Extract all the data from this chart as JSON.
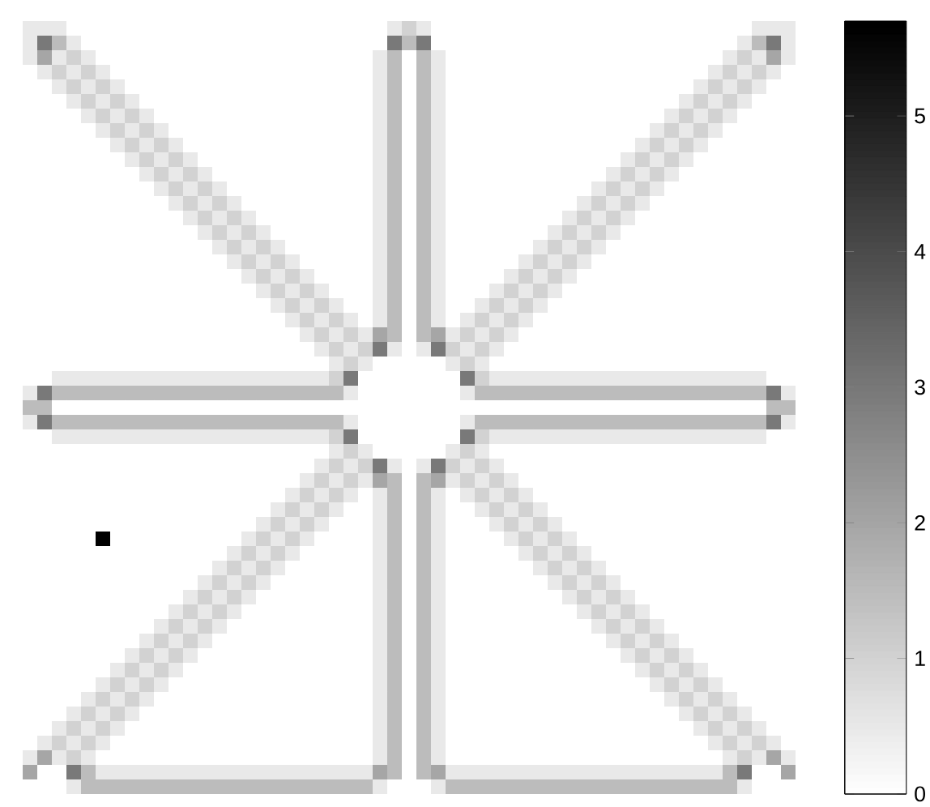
{
  "chart_data": {
    "type": "heatmap",
    "categories": [
      null,
      null,
      null,
      null,
      null,
      null,
      null,
      null,
      null,
      null,
      null,
      null,
      null,
      null,
      null,
      null,
      null,
      null,
      null,
      null,
      null,
      null,
      null,
      null,
      null,
      null,
      null,
      null,
      null,
      null,
      null,
      null,
      null,
      null,
      null,
      null,
      null,
      null,
      null,
      null,
      null,
      null,
      null,
      null,
      null,
      null,
      null,
      null,
      null,
      null,
      null,
      null,
      null
    ],
    "y_categories": [
      null,
      null,
      null,
      null,
      null,
      null,
      null,
      null,
      null,
      null,
      null,
      null,
      null,
      null,
      null,
      null,
      null,
      null,
      null,
      null,
      null,
      null,
      null,
      null,
      null,
      null,
      null,
      null,
      null,
      null,
      null,
      null,
      null,
      null,
      null,
      null,
      null,
      null,
      null,
      null,
      null,
      null,
      null,
      null,
      null,
      null,
      null,
      null,
      null,
      null,
      null,
      null,
      null
    ],
    "tick_labels": false,
    "clim": [
      0,
      5.7
    ],
    "cticks": [
      0,
      1,
      2,
      3,
      4,
      5
    ],
    "cells": [
      [
        0.5,
        0.5,
        0.5,
        0,
        0,
        0,
        0,
        0,
        0,
        0,
        0,
        0,
        0,
        0,
        0,
        0,
        0,
        0,
        0,
        0,
        0,
        0,
        0,
        0,
        0,
        0.5,
        1,
        0.5,
        0,
        0,
        0,
        0,
        0,
        0,
        0,
        0,
        0,
        0,
        0,
        0,
        0,
        0,
        0,
        0,
        0,
        0,
        0,
        0,
        0,
        0,
        0.5,
        0.5,
        0.5
      ],
      [
        0.5,
        3,
        1.5,
        0.5,
        0,
        0,
        0,
        0,
        0,
        0,
        0,
        0,
        0,
        0,
        0,
        0,
        0,
        0,
        0,
        0,
        0,
        0,
        0,
        0,
        0,
        3,
        1.5,
        3,
        0,
        0,
        0,
        0,
        0,
        0,
        0,
        0,
        0,
        0,
        0,
        0,
        0,
        0,
        0,
        0,
        0,
        0,
        0,
        0,
        0,
        0.5,
        1.5,
        3,
        0.5
      ],
      [
        0.5,
        2,
        0.5,
        1,
        0.5,
        0,
        0,
        0,
        0,
        0,
        0,
        0,
        0,
        0,
        0,
        0,
        0,
        0,
        0,
        0,
        0,
        0,
        0,
        0,
        0.5,
        1.5,
        0,
        1.5,
        0.5,
        0,
        0,
        0,
        0,
        0,
        0,
        0,
        0,
        0,
        0,
        0,
        0,
        0,
        0,
        0,
        0,
        0,
        0,
        0,
        0.5,
        1,
        0.5,
        2,
        0.5
      ],
      [
        0,
        0.5,
        1,
        0.5,
        1,
        0.5,
        0,
        0,
        0,
        0,
        0,
        0,
        0,
        0,
        0,
        0,
        0,
        0,
        0,
        0,
        0,
        0,
        0,
        0,
        0.5,
        1.5,
        0,
        1.5,
        0.5,
        0,
        0,
        0,
        0,
        0,
        0,
        0,
        0,
        0,
        0,
        0,
        0,
        0,
        0,
        0,
        0,
        0,
        0,
        0.5,
        1,
        0.5,
        1,
        0.5,
        0
      ],
      [
        0,
        0,
        0.5,
        1,
        0.5,
        1,
        0.5,
        0,
        0,
        0,
        0,
        0,
        0,
        0,
        0,
        0,
        0,
        0,
        0,
        0,
        0,
        0,
        0,
        0,
        0.5,
        1.5,
        0,
        1.5,
        0.5,
        0,
        0,
        0,
        0,
        0,
        0,
        0,
        0,
        0,
        0,
        0,
        0,
        0,
        0,
        0,
        0,
        0,
        0.5,
        1,
        0.5,
        1,
        0.5,
        0,
        0
      ],
      [
        0,
        0,
        0,
        0.5,
        1,
        0.5,
        1,
        0.5,
        0,
        0,
        0,
        0,
        0,
        0,
        0,
        0,
        0,
        0,
        0,
        0,
        0,
        0,
        0,
        0,
        0.5,
        1.5,
        0,
        1.5,
        0.5,
        0,
        0,
        0,
        0,
        0,
        0,
        0,
        0,
        0,
        0,
        0,
        0,
        0,
        0,
        0,
        0,
        0.5,
        1,
        0.5,
        1,
        0.5,
        0,
        0,
        0
      ],
      [
        0,
        0,
        0,
        0,
        0.5,
        1,
        0.5,
        1,
        0.5,
        0,
        0,
        0,
        0,
        0,
        0,
        0,
        0,
        0,
        0,
        0,
        0,
        0,
        0,
        0,
        0.5,
        1.5,
        0,
        1.5,
        0.5,
        0,
        0,
        0,
        0,
        0,
        0,
        0,
        0,
        0,
        0,
        0,
        0,
        0,
        0,
        0,
        0.5,
        1,
        0.5,
        1,
        0.5,
        0,
        0,
        0,
        0
      ],
      [
        0,
        0,
        0,
        0,
        0,
        0.5,
        1,
        0.5,
        1,
        0.5,
        0,
        0,
        0,
        0,
        0,
        0,
        0,
        0,
        0,
        0,
        0,
        0,
        0,
        0,
        0.5,
        1.5,
        0,
        1.5,
        0.5,
        0,
        0,
        0,
        0,
        0,
        0,
        0,
        0,
        0,
        0,
        0,
        0,
        0,
        0,
        0.5,
        1,
        0.5,
        1,
        0.5,
        0,
        0,
        0,
        0,
        0
      ],
      [
        0,
        0,
        0,
        0,
        0,
        0,
        0.5,
        1,
        0.5,
        1,
        0.5,
        0,
        0,
        0,
        0,
        0,
        0,
        0,
        0,
        0,
        0,
        0,
        0,
        0,
        0.5,
        1.5,
        0,
        1.5,
        0.5,
        0,
        0,
        0,
        0,
        0,
        0,
        0,
        0,
        0,
        0,
        0,
        0,
        0,
        0.5,
        1,
        0.5,
        1,
        0.5,
        0,
        0,
        0,
        0,
        0,
        0
      ],
      [
        0,
        0,
        0,
        0,
        0,
        0,
        0,
        0.5,
        1,
        0.5,
        1,
        0.5,
        0,
        0,
        0,
        0,
        0,
        0,
        0,
        0,
        0,
        0,
        0,
        0,
        0.5,
        1.5,
        0,
        1.5,
        0.5,
        0,
        0,
        0,
        0,
        0,
        0,
        0,
        0,
        0,
        0,
        0,
        0,
        0.5,
        1,
        0.5,
        1,
        0.5,
        0,
        0,
        0,
        0,
        0,
        0,
        0
      ],
      [
        0,
        0,
        0,
        0,
        0,
        0,
        0,
        0,
        0.5,
        1,
        0.5,
        1,
        0.5,
        0,
        0,
        0,
        0,
        0,
        0,
        0,
        0,
        0,
        0,
        0,
        0.5,
        1.5,
        0,
        1.5,
        0.5,
        0,
        0,
        0,
        0,
        0,
        0,
        0,
        0,
        0,
        0,
        0,
        0.5,
        1,
        0.5,
        1,
        0.5,
        0,
        0,
        0,
        0,
        0,
        0,
        0,
        0
      ],
      [
        0,
        0,
        0,
        0,
        0,
        0,
        0,
        0,
        0,
        0.5,
        1,
        0.5,
        1,
        0.5,
        0,
        0,
        0,
        0,
        0,
        0,
        0,
        0,
        0,
        0,
        0.5,
        1.5,
        0,
        1.5,
        0.5,
        0,
        0,
        0,
        0,
        0,
        0,
        0,
        0,
        0,
        0,
        0.5,
        1,
        0.5,
        1,
        0.5,
        0,
        0,
        0,
        0,
        0,
        0,
        0,
        0,
        0
      ],
      [
        0,
        0,
        0,
        0,
        0,
        0,
        0,
        0,
        0,
        0,
        0.5,
        1,
        0.5,
        1,
        0.5,
        0,
        0,
        0,
        0,
        0,
        0,
        0,
        0,
        0,
        0.5,
        1.5,
        0,
        1.5,
        0.5,
        0,
        0,
        0,
        0,
        0,
        0,
        0,
        0,
        0,
        0.5,
        1,
        0.5,
        1,
        0.5,
        0,
        0,
        0,
        0,
        0,
        0,
        0,
        0,
        0,
        0
      ],
      [
        0,
        0,
        0,
        0,
        0,
        0,
        0,
        0,
        0,
        0,
        0,
        0.5,
        1,
        0.5,
        1,
        0.5,
        0,
        0,
        0,
        0,
        0,
        0,
        0,
        0,
        0.5,
        1.5,
        0,
        1.5,
        0.5,
        0,
        0,
        0,
        0,
        0,
        0,
        0,
        0,
        0.5,
        1,
        0.5,
        1,
        0.5,
        0,
        0,
        0,
        0,
        0,
        0,
        0,
        0,
        0,
        0,
        0
      ],
      [
        0,
        0,
        0,
        0,
        0,
        0,
        0,
        0,
        0,
        0,
        0,
        0,
        0.5,
        1,
        0.5,
        1,
        0.5,
        0,
        0,
        0,
        0,
        0,
        0,
        0,
        0.5,
        1.5,
        0,
        1.5,
        0.5,
        0,
        0,
        0,
        0,
        0,
        0,
        0,
        0.5,
        1,
        0.5,
        1,
        0.5,
        0,
        0,
        0,
        0,
        0,
        0,
        0,
        0,
        0,
        0,
        0,
        0
      ],
      [
        0,
        0,
        0,
        0,
        0,
        0,
        0,
        0,
        0,
        0,
        0,
        0,
        0,
        0.5,
        1,
        0.5,
        1,
        0.5,
        0,
        0,
        0,
        0,
        0,
        0,
        0.5,
        1.5,
        0,
        1.5,
        0.5,
        0,
        0,
        0,
        0,
        0,
        0,
        0.5,
        1,
        0.5,
        1,
        0.5,
        0,
        0,
        0,
        0,
        0,
        0,
        0,
        0,
        0,
        0,
        0,
        0,
        0
      ],
      [
        0,
        0,
        0,
        0,
        0,
        0,
        0,
        0,
        0,
        0,
        0,
        0,
        0,
        0,
        0.5,
        1,
        0.5,
        1,
        0.5,
        0,
        0,
        0,
        0,
        0,
        0.5,
        1.5,
        0,
        1.5,
        0.5,
        0,
        0,
        0,
        0,
        0,
        0.5,
        1,
        0.5,
        1,
        0.5,
        0,
        0,
        0,
        0,
        0,
        0,
        0,
        0,
        0,
        0,
        0,
        0,
        0,
        0
      ],
      [
        0,
        0,
        0,
        0,
        0,
        0,
        0,
        0,
        0,
        0,
        0,
        0,
        0,
        0,
        0,
        0.5,
        1,
        0.5,
        1,
        0.5,
        0,
        0,
        0,
        0,
        0.5,
        1.5,
        0,
        1.5,
        0.5,
        0,
        0,
        0,
        0,
        0.5,
        1,
        0.5,
        1,
        0.5,
        0,
        0,
        0,
        0,
        0,
        0,
        0,
        0,
        0,
        0,
        0,
        0,
        0,
        0,
        0
      ],
      [
        0,
        0,
        0,
        0,
        0,
        0,
        0,
        0,
        0,
        0,
        0,
        0,
        0,
        0,
        0,
        0,
        0.5,
        1,
        0.5,
        1,
        0.5,
        0,
        0,
        0,
        0.5,
        1.5,
        0,
        1.5,
        0.5,
        0,
        0,
        0,
        0.5,
        1,
        0.5,
        1,
        0.5,
        0,
        0,
        0,
        0,
        0,
        0,
        0,
        0,
        0,
        0,
        0,
        0,
        0,
        0,
        0,
        0
      ],
      [
        0,
        0,
        0,
        0,
        0,
        0,
        0,
        0,
        0,
        0,
        0,
        0,
        0,
        0,
        0,
        0,
        0,
        0.5,
        1,
        0.5,
        1,
        0.5,
        0,
        0,
        0.5,
        1.5,
        0,
        1.5,
        0.5,
        0,
        0,
        0.5,
        1,
        0.5,
        1,
        0.5,
        0,
        0,
        0,
        0,
        0,
        0,
        0,
        0,
        0,
        0,
        0,
        0,
        0,
        0,
        0,
        0,
        0
      ],
      [
        0,
        0,
        0,
        0,
        0,
        0,
        0,
        0,
        0,
        0,
        0,
        0,
        0,
        0,
        0,
        0,
        0,
        0,
        0.5,
        1,
        0.5,
        1,
        0.5,
        0,
        0.5,
        1.5,
        0,
        1.5,
        0.5,
        0,
        0.5,
        1,
        0.5,
        1,
        0.5,
        0,
        0,
        0,
        0,
        0,
        0,
        0,
        0,
        0,
        0,
        0,
        0,
        0,
        0,
        0,
        0,
        0,
        0
      ],
      [
        0,
        0,
        0,
        0,
        0,
        0,
        0,
        0,
        0,
        0,
        0,
        0,
        0,
        0,
        0,
        0,
        0,
        0,
        0,
        0.5,
        1,
        0.5,
        1,
        0.5,
        2,
        1.5,
        0,
        1.5,
        2,
        0.5,
        1,
        0.5,
        1,
        0.5,
        0,
        0,
        0,
        0,
        0,
        0,
        0,
        0,
        0,
        0,
        0,
        0,
        0,
        0,
        0,
        0,
        0,
        0,
        0
      ],
      [
        0,
        0,
        0,
        0,
        0,
        0,
        0,
        0,
        0,
        0,
        0,
        0,
        0,
        0,
        0,
        0,
        0,
        0,
        0,
        0,
        0.5,
        1,
        0.5,
        1,
        3,
        0.5,
        0,
        0.5,
        3,
        1,
        0.5,
        1,
        0.5,
        0,
        0,
        0,
        0,
        0,
        0,
        0,
        0,
        0,
        0,
        0,
        0,
        0,
        0,
        0,
        0,
        0,
        0,
        0,
        0
      ],
      [
        0,
        0,
        0,
        0,
        0,
        0,
        0,
        0,
        0,
        0,
        0,
        0,
        0,
        0,
        0,
        0,
        0,
        0,
        0,
        0,
        0,
        0.5,
        1,
        0.5,
        0,
        0,
        0,
        0,
        0,
        0.5,
        1,
        0.5,
        0,
        0,
        0,
        0,
        0,
        0,
        0,
        0,
        0,
        0,
        0,
        0,
        0,
        0,
        0,
        0,
        0,
        0,
        0,
        0,
        0
      ],
      [
        0,
        0,
        0.5,
        0.5,
        0.5,
        0.5,
        0.5,
        0.5,
        0.5,
        0.5,
        0.5,
        0.5,
        0.5,
        0.5,
        0.5,
        0.5,
        0.5,
        0.5,
        0.5,
        0.5,
        0.5,
        1,
        3,
        0,
        0,
        0,
        0,
        0,
        0,
        0,
        3,
        1,
        0.5,
        0.5,
        0.5,
        0.5,
        0.5,
        0.5,
        0.5,
        0.5,
        0.5,
        0.5,
        0.5,
        0.5,
        0.5,
        0.5,
        0.5,
        0.5,
        0.5,
        0.5,
        0.5,
        0,
        0
      ],
      [
        0.5,
        3,
        1.5,
        1.5,
        1.5,
        1.5,
        1.5,
        1.5,
        1.5,
        1.5,
        1.5,
        1.5,
        1.5,
        1.5,
        1.5,
        1.5,
        1.5,
        1.5,
        1.5,
        1.5,
        1.5,
        1.5,
        0.5,
        0,
        0,
        0,
        0,
        0,
        0,
        0,
        0.5,
        1.5,
        1.5,
        1.5,
        1.5,
        1.5,
        1.5,
        1.5,
        1.5,
        1.5,
        1.5,
        1.5,
        1.5,
        1.5,
        1.5,
        1.5,
        1.5,
        1.5,
        1.5,
        1.5,
        1.5,
        3,
        0.5
      ],
      [
        1.5,
        1.5,
        0,
        0,
        0,
        0,
        0,
        0,
        0,
        0,
        0,
        0,
        0,
        0,
        0,
        0,
        0,
        0,
        0,
        0,
        0,
        0,
        0,
        0,
        0,
        0,
        0,
        0,
        0,
        0,
        0,
        0,
        0,
        0,
        0,
        0,
        0,
        0,
        0,
        0,
        0,
        0,
        0,
        0,
        0,
        0,
        0,
        0,
        0,
        0,
        0,
        1.5,
        1.5
      ],
      [
        0.5,
        3,
        1.5,
        1.5,
        1.5,
        1.5,
        1.5,
        1.5,
        1.5,
        1.5,
        1.5,
        1.5,
        1.5,
        1.5,
        1.5,
        1.5,
        1.5,
        1.5,
        1.5,
        1.5,
        1.5,
        1.5,
        0.5,
        0,
        0,
        0,
        0,
        0,
        0,
        0,
        0.5,
        1.5,
        1.5,
        1.5,
        1.5,
        1.5,
        1.5,
        1.5,
        1.5,
        1.5,
        1.5,
        1.5,
        1.5,
        1.5,
        1.5,
        1.5,
        1.5,
        1.5,
        1.5,
        1.5,
        1.5,
        3,
        0.5
      ],
      [
        0,
        0,
        0.5,
        0.5,
        0.5,
        0.5,
        0.5,
        0.5,
        0.5,
        0.5,
        0.5,
        0.5,
        0.5,
        0.5,
        0.5,
        0.5,
        0.5,
        0.5,
        0.5,
        0.5,
        0.5,
        1,
        3,
        0,
        0,
        0,
        0,
        0,
        0,
        0,
        3,
        1,
        0.5,
        0.5,
        0.5,
        0.5,
        0.5,
        0.5,
        0.5,
        0.5,
        0.5,
        0.5,
        0.5,
        0.5,
        0.5,
        0.5,
        0.5,
        0.5,
        0.5,
        0.5,
        0.5,
        0,
        0
      ],
      [
        0,
        0,
        0,
        0,
        0,
        0,
        0,
        0,
        0,
        0,
        0,
        0,
        0,
        0,
        0,
        0,
        0,
        0,
        0,
        0,
        0,
        0.5,
        1,
        0.5,
        0,
        0,
        0,
        0,
        0,
        0.5,
        1,
        0.5,
        0,
        0,
        0,
        0,
        0,
        0,
        0,
        0,
        0,
        0,
        0,
        0,
        0,
        0,
        0,
        0,
        0,
        0,
        0,
        0,
        0
      ],
      [
        0,
        0,
        0,
        0,
        0,
        0,
        0,
        0,
        0,
        0,
        0,
        0,
        0,
        0,
        0,
        0,
        0,
        0,
        0,
        0,
        0.5,
        1,
        0.5,
        1,
        3,
        0.5,
        0,
        0.5,
        3,
        1,
        0.5,
        1,
        0.5,
        0,
        0,
        0,
        0,
        0,
        0,
        0,
        0,
        0,
        0,
        0,
        0,
        0,
        0,
        0,
        0,
        0,
        0,
        0,
        0
      ],
      [
        0,
        0,
        0,
        0,
        0,
        0,
        0,
        0,
        0,
        0,
        0,
        0,
        0,
        0,
        0,
        0,
        0,
        0,
        0,
        0.5,
        1,
        0.5,
        1,
        0.5,
        2,
        1.5,
        0,
        1.5,
        2,
        0.5,
        1,
        0.5,
        1,
        0.5,
        0,
        0,
        0,
        0,
        0,
        0,
        0,
        0,
        0,
        0,
        0,
        0,
        0,
        0,
        0,
        0,
        0,
        0,
        0
      ],
      [
        0,
        0,
        0,
        0,
        0,
        0,
        0,
        0,
        0,
        0,
        0,
        0,
        0,
        0,
        0,
        0,
        0,
        0,
        0.5,
        1,
        0.5,
        1,
        0.5,
        0,
        0.5,
        1.5,
        0,
        1.5,
        0.5,
        0,
        0.5,
        1,
        0.5,
        1,
        0.5,
        0,
        0,
        0,
        0,
        0,
        0,
        0,
        0,
        0,
        0,
        0,
        0,
        0,
        0,
        0,
        0,
        0,
        0
      ],
      [
        0,
        0,
        0,
        0,
        0,
        0,
        0,
        0,
        0,
        0,
        0,
        0,
        0,
        0,
        0,
        0,
        0,
        0.5,
        1,
        0.5,
        1,
        0.5,
        0,
        0,
        0.5,
        1.5,
        0,
        1.5,
        0.5,
        0,
        0,
        0.5,
        1,
        0.5,
        1,
        0.5,
        0,
        0,
        0,
        0,
        0,
        0,
        0,
        0,
        0,
        0,
        0,
        0,
        0,
        0,
        0,
        0,
        0
      ],
      [
        0,
        0,
        0,
        0,
        0,
        0,
        0,
        0,
        0,
        0,
        0,
        0,
        0,
        0,
        0,
        0,
        0.5,
        1,
        0.5,
        1,
        0.5,
        0,
        0,
        0,
        0.5,
        1.5,
        0,
        1.5,
        0.5,
        0,
        0,
        0,
        0.5,
        1,
        0.5,
        1,
        0.5,
        0,
        0,
        0,
        0,
        0,
        0,
        0,
        0,
        0,
        0,
        0,
        0,
        0,
        0,
        0,
        0
      ],
      [
        0,
        0,
        0,
        0,
        0,
        5.7,
        0,
        0,
        0,
        0,
        0,
        0,
        0,
        0,
        0,
        0.5,
        1,
        0.5,
        1,
        0.5,
        0,
        0,
        0,
        0,
        0.5,
        1.5,
        0,
        1.5,
        0.5,
        0,
        0,
        0,
        0,
        0.5,
        1,
        0.5,
        1,
        0.5,
        0,
        0,
        0,
        0,
        0,
        0,
        0,
        0,
        0,
        0,
        0,
        0,
        0,
        0,
        0
      ],
      [
        0,
        0,
        0,
        0,
        0,
        0,
        0,
        0,
        0,
        0,
        0,
        0,
        0,
        0,
        0.5,
        1,
        0.5,
        1,
        0.5,
        0,
        0,
        0,
        0,
        0,
        0.5,
        1.5,
        0,
        1.5,
        0.5,
        0,
        0,
        0,
        0,
        0,
        0.5,
        1,
        0.5,
        1,
        0.5,
        0,
        0,
        0,
        0,
        0,
        0,
        0,
        0,
        0,
        0,
        0,
        0,
        0,
        0
      ],
      [
        0,
        0,
        0,
        0,
        0,
        0,
        0,
        0,
        0,
        0,
        0,
        0,
        0,
        0.5,
        1,
        0.5,
        1,
        0.5,
        0,
        0,
        0,
        0,
        0,
        0,
        0.5,
        1.5,
        0,
        1.5,
        0.5,
        0,
        0,
        0,
        0,
        0,
        0,
        0.5,
        1,
        0.5,
        1,
        0.5,
        0,
        0,
        0,
        0,
        0,
        0,
        0,
        0,
        0,
        0,
        0,
        0,
        0
      ],
      [
        0,
        0,
        0,
        0,
        0,
        0,
        0,
        0,
        0,
        0,
        0,
        0,
        0.5,
        1,
        0.5,
        1,
        0.5,
        0,
        0,
        0,
        0,
        0,
        0,
        0,
        0.5,
        1.5,
        0,
        1.5,
        0.5,
        0,
        0,
        0,
        0,
        0,
        0,
        0,
        0.5,
        1,
        0.5,
        1,
        0.5,
        0,
        0,
        0,
        0,
        0,
        0,
        0,
        0,
        0,
        0,
        0,
        0
      ],
      [
        0,
        0,
        0,
        0,
        0,
        0,
        0,
        0,
        0,
        0,
        0,
        0.5,
        1,
        0.5,
        1,
        0.5,
        0,
        0,
        0,
        0,
        0,
        0,
        0,
        0,
        0.5,
        1.5,
        0,
        1.5,
        0.5,
        0,
        0,
        0,
        0,
        0,
        0,
        0,
        0,
        0.5,
        1,
        0.5,
        1,
        0.5,
        0,
        0,
        0,
        0,
        0,
        0,
        0,
        0,
        0,
        0,
        0
      ],
      [
        0,
        0,
        0,
        0,
        0,
        0,
        0,
        0,
        0,
        0,
        0.5,
        1,
        0.5,
        1,
        0.5,
        0,
        0,
        0,
        0,
        0,
        0,
        0,
        0,
        0,
        0.5,
        1.5,
        0,
        1.5,
        0.5,
        0,
        0,
        0,
        0,
        0,
        0,
        0,
        0,
        0,
        0.5,
        1,
        0.5,
        1,
        0.5,
        0,
        0,
        0,
        0,
        0,
        0,
        0,
        0,
        0,
        0
      ],
      [
        0,
        0,
        0,
        0,
        0,
        0,
        0,
        0,
        0,
        0.5,
        1,
        0.5,
        1,
        0.5,
        0,
        0,
        0,
        0,
        0,
        0,
        0,
        0,
        0,
        0,
        0.5,
        1.5,
        0,
        1.5,
        0.5,
        0,
        0,
        0,
        0,
        0,
        0,
        0,
        0,
        0,
        0,
        0.5,
        1,
        0.5,
        1,
        0.5,
        0,
        0,
        0,
        0,
        0,
        0,
        0,
        0,
        0
      ],
      [
        0,
        0,
        0,
        0,
        0,
        0,
        0,
        0,
        0.5,
        1,
        0.5,
        1,
        0.5,
        0,
        0,
        0,
        0,
        0,
        0,
        0,
        0,
        0,
        0,
        0,
        0.5,
        1.5,
        0,
        1.5,
        0.5,
        0,
        0,
        0,
        0,
        0,
        0,
        0,
        0,
        0,
        0,
        0,
        0.5,
        1,
        0.5,
        1,
        0.5,
        0,
        0,
        0,
        0,
        0,
        0,
        0,
        0
      ],
      [
        0,
        0,
        0,
        0,
        0,
        0,
        0,
        0.5,
        1,
        0.5,
        1,
        0.5,
        0,
        0,
        0,
        0,
        0,
        0,
        0,
        0,
        0,
        0,
        0,
        0,
        0.5,
        1.5,
        0,
        1.5,
        0.5,
        0,
        0,
        0,
        0,
        0,
        0,
        0,
        0,
        0,
        0,
        0,
        0,
        0.5,
        1,
        0.5,
        1,
        0.5,
        0,
        0,
        0,
        0,
        0,
        0,
        0
      ],
      [
        0,
        0,
        0,
        0,
        0,
        0,
        0.5,
        1,
        0.5,
        1,
        0.5,
        0,
        0,
        0,
        0,
        0,
        0,
        0,
        0,
        0,
        0,
        0,
        0,
        0,
        0.5,
        1.5,
        0,
        1.5,
        0.5,
        0,
        0,
        0,
        0,
        0,
        0,
        0,
        0,
        0,
        0,
        0,
        0,
        0,
        0.5,
        1,
        0.5,
        1,
        0.5,
        0,
        0,
        0,
        0,
        0,
        0
      ],
      [
        0,
        0,
        0,
        0,
        0,
        0.5,
        1,
        0.5,
        1,
        0.5,
        0,
        0,
        0,
        0,
        0,
        0,
        0,
        0,
        0,
        0,
        0,
        0,
        0,
        0,
        0.5,
        1.5,
        0,
        1.5,
        0.5,
        0,
        0,
        0,
        0,
        0,
        0,
        0,
        0,
        0,
        0,
        0,
        0,
        0,
        0,
        0.5,
        1,
        0.5,
        1,
        0.5,
        0,
        0,
        0,
        0,
        0
      ],
      [
        0,
        0,
        0,
        0,
        0.5,
        1,
        0.5,
        1,
        0.5,
        0,
        0,
        0,
        0,
        0,
        0,
        0,
        0,
        0,
        0,
        0,
        0,
        0,
        0,
        0,
        0.5,
        1.5,
        0,
        1.5,
        0.5,
        0,
        0,
        0,
        0,
        0,
        0,
        0,
        0,
        0,
        0,
        0,
        0,
        0,
        0,
        0,
        0.5,
        1,
        0.5,
        1,
        0.5,
        0,
        0,
        0,
        0
      ],
      [
        0,
        0,
        0,
        0.5,
        1,
        0.5,
        1,
        0.5,
        0,
        0,
        0,
        0,
        0,
        0,
        0,
        0,
        0,
        0,
        0,
        0,
        0,
        0,
        0,
        0,
        0.5,
        1.5,
        0,
        1.5,
        0.5,
        0,
        0,
        0,
        0,
        0,
        0,
        0,
        0,
        0,
        0,
        0,
        0,
        0,
        0,
        0,
        0,
        0.5,
        1,
        0.5,
        1,
        0.5,
        0,
        0,
        0
      ],
      [
        0,
        0,
        0.5,
        1,
        0.5,
        1,
        0.5,
        0,
        0,
        0,
        0,
        0,
        0,
        0,
        0,
        0,
        0,
        0,
        0,
        0,
        0,
        0,
        0,
        0,
        0.5,
        1.5,
        0,
        1.5,
        0.5,
        0,
        0,
        0,
        0,
        0,
        0,
        0,
        0,
        0,
        0,
        0,
        0,
        0,
        0,
        0,
        0,
        0,
        0.5,
        1,
        0.5,
        1,
        0.5,
        0,
        0
      ],
      [
        0,
        0.5,
        1,
        0.5,
        1,
        0.5,
        0,
        0,
        0,
        0,
        0,
        0,
        0,
        0,
        0,
        0,
        0,
        0,
        0,
        0,
        0,
        0,
        0,
        0,
        0.5,
        1.5,
        0,
        1.5,
        0.5,
        0,
        0,
        0,
        0,
        0,
        0,
        0,
        0,
        0,
        0,
        0,
        0,
        0,
        0,
        0,
        0,
        0,
        0,
        0.5,
        1,
        0.5,
        1,
        0.5,
        0
      ],
      [
        0.5,
        2,
        0.5,
        1,
        0.5,
        0,
        0,
        0,
        0,
        0,
        0,
        0,
        0,
        0,
        0,
        0,
        0,
        0,
        0,
        0,
        0,
        0,
        0,
        0,
        0.5,
        1.5,
        0,
        1.5,
        0.5,
        0,
        0,
        0,
        0,
        0,
        0,
        0,
        0,
        0,
        0,
        0,
        0,
        0,
        0,
        0,
        0,
        0,
        0,
        0,
        0.5,
        1,
        0.5,
        2,
        0.5
      ],
      [
        2,
        0,
        0,
        3,
        1.5,
        0.5,
        0.5,
        0.5,
        0.5,
        0.5,
        0.5,
        0.5,
        0.5,
        0.5,
        0.5,
        0.5,
        0.5,
        0.5,
        0.5,
        0.5,
        0.5,
        0.5,
        0.5,
        0.5,
        2,
        1.5,
        0,
        1.5,
        2,
        0.5,
        0.5,
        0.5,
        0.5,
        0.5,
        0.5,
        0.5,
        0.5,
        0.5,
        0.5,
        0.5,
        0.5,
        0.5,
        0.5,
        0.5,
        0.5,
        0.5,
        0.5,
        0.5,
        1.5,
        3,
        0,
        0,
        2
      ],
      [
        0,
        0,
        0,
        0.5,
        1.5,
        1.5,
        1.5,
        1.5,
        1.5,
        1.5,
        1.5,
        1.5,
        1.5,
        1.5,
        1.5,
        1.5,
        1.5,
        1.5,
        1.5,
        1.5,
        1.5,
        1.5,
        1.5,
        1.5,
        0.5,
        0,
        0,
        0,
        0.5,
        1.5,
        1.5,
        1.5,
        1.5,
        1.5,
        1.5,
        1.5,
        1.5,
        1.5,
        1.5,
        1.5,
        1.5,
        1.5,
        1.5,
        1.5,
        1.5,
        1.5,
        1.5,
        1.5,
        1.5,
        0.5,
        0,
        0,
        0
      ]
    ]
  }
}
